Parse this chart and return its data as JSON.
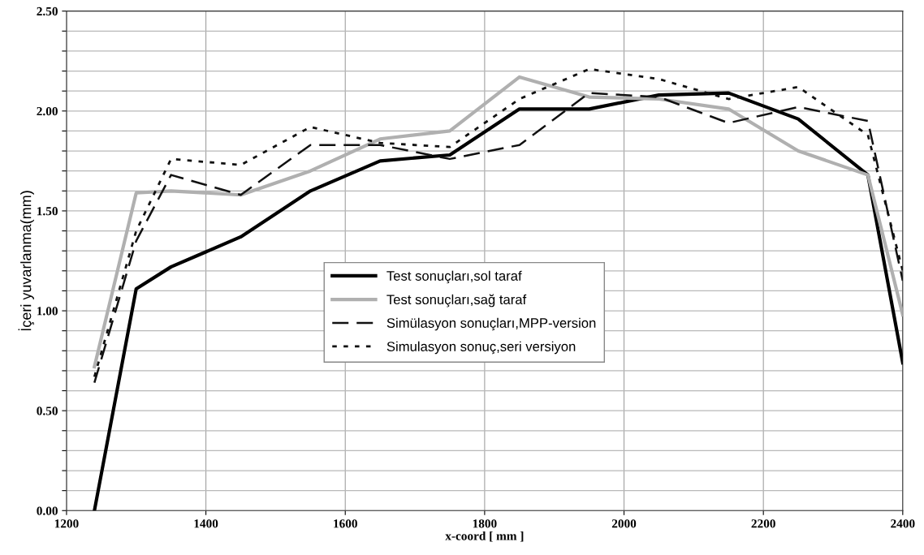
{
  "chart_data": {
    "type": "line",
    "xlabel": "x-coord [ mm ]",
    "ylabel": "İçeri yuvarlanma(mm)",
    "x": [
      1240,
      1300,
      1350,
      1450,
      1550,
      1650,
      1750,
      1850,
      1950,
      2050,
      2150,
      2250,
      2350,
      2400
    ],
    "series": [
      {
        "name": "Test sonuçları,sol taraf",
        "color": "#000000",
        "line_style": "solid",
        "values": [
          0,
          1.11,
          1.22,
          1.37,
          1.6,
          1.75,
          1.78,
          2.01,
          2.01,
          2.08,
          2.09,
          1.96,
          1.68,
          0.74
        ]
      },
      {
        "name": "Test sonuçları,sağ taraf",
        "color": "#b0b0b0",
        "line_style": "solid",
        "values": [
          0.72,
          1.59,
          1.6,
          1.58,
          1.7,
          1.86,
          1.9,
          2.17,
          2.07,
          2.06,
          2.01,
          1.8,
          1.68,
          0.98
        ]
      },
      {
        "name": "Simülasyon sonuçları,MPP-version",
        "color": "#111111",
        "line_style": "dashed",
        "values": [
          0.64,
          1.35,
          1.68,
          1.58,
          1.83,
          1.83,
          1.76,
          1.83,
          2.09,
          2.07,
          1.94,
          2.02,
          1.95,
          1.15
        ]
      },
      {
        "name": "Simulasyon sonuç,seri versiyon",
        "color": "#111111",
        "line_style": "dotted",
        "values": [
          0.67,
          1.4,
          1.76,
          1.73,
          1.92,
          1.84,
          1.82,
          2.06,
          2.21,
          2.16,
          2.06,
          2.12,
          1.88,
          1.2
        ]
      }
    ],
    "xlim": [
      1200,
      2400
    ],
    "xticks": [
      1200,
      1400,
      1600,
      1800,
      2000,
      2200,
      2400
    ],
    "ylim": [
      0,
      2.5
    ],
    "yticks": [
      {
        "value": 0,
        "label": "0.00"
      },
      {
        "value": 0.1,
        "label": null
      },
      {
        "value": 0.2,
        "label": null
      },
      {
        "value": 0.3,
        "label": null
      },
      {
        "value": 0.4,
        "label": null
      },
      {
        "value": 0.5,
        "label": "0.50"
      },
      {
        "value": 0.6,
        "label": null
      },
      {
        "value": 0.7,
        "label": null
      },
      {
        "value": 0.8,
        "label": null
      },
      {
        "value": 0.9,
        "label": null
      },
      {
        "value": 1.0,
        "label": "1.00"
      },
      {
        "value": 1.1,
        "label": null
      },
      {
        "value": 1.2,
        "label": null
      },
      {
        "value": 1.3,
        "label": null
      },
      {
        "value": 1.4,
        "label": null
      },
      {
        "value": 1.5,
        "label": "1.50"
      },
      {
        "value": 1.6,
        "label": null
      },
      {
        "value": 1.7,
        "label": null
      },
      {
        "value": 1.8,
        "label": null
      },
      {
        "value": 1.9,
        "label": null
      },
      {
        "value": 2.0,
        "label": "2.00"
      },
      {
        "value": 2.1,
        "label": null
      },
      {
        "value": 2.2,
        "label": null
      },
      {
        "value": 2.3,
        "label": null
      },
      {
        "value": 2.4,
        "label": null
      },
      {
        "value": 2.5,
        "label": "2.50"
      }
    ],
    "grid": true,
    "legend": "center",
    "marker": "none"
  }
}
